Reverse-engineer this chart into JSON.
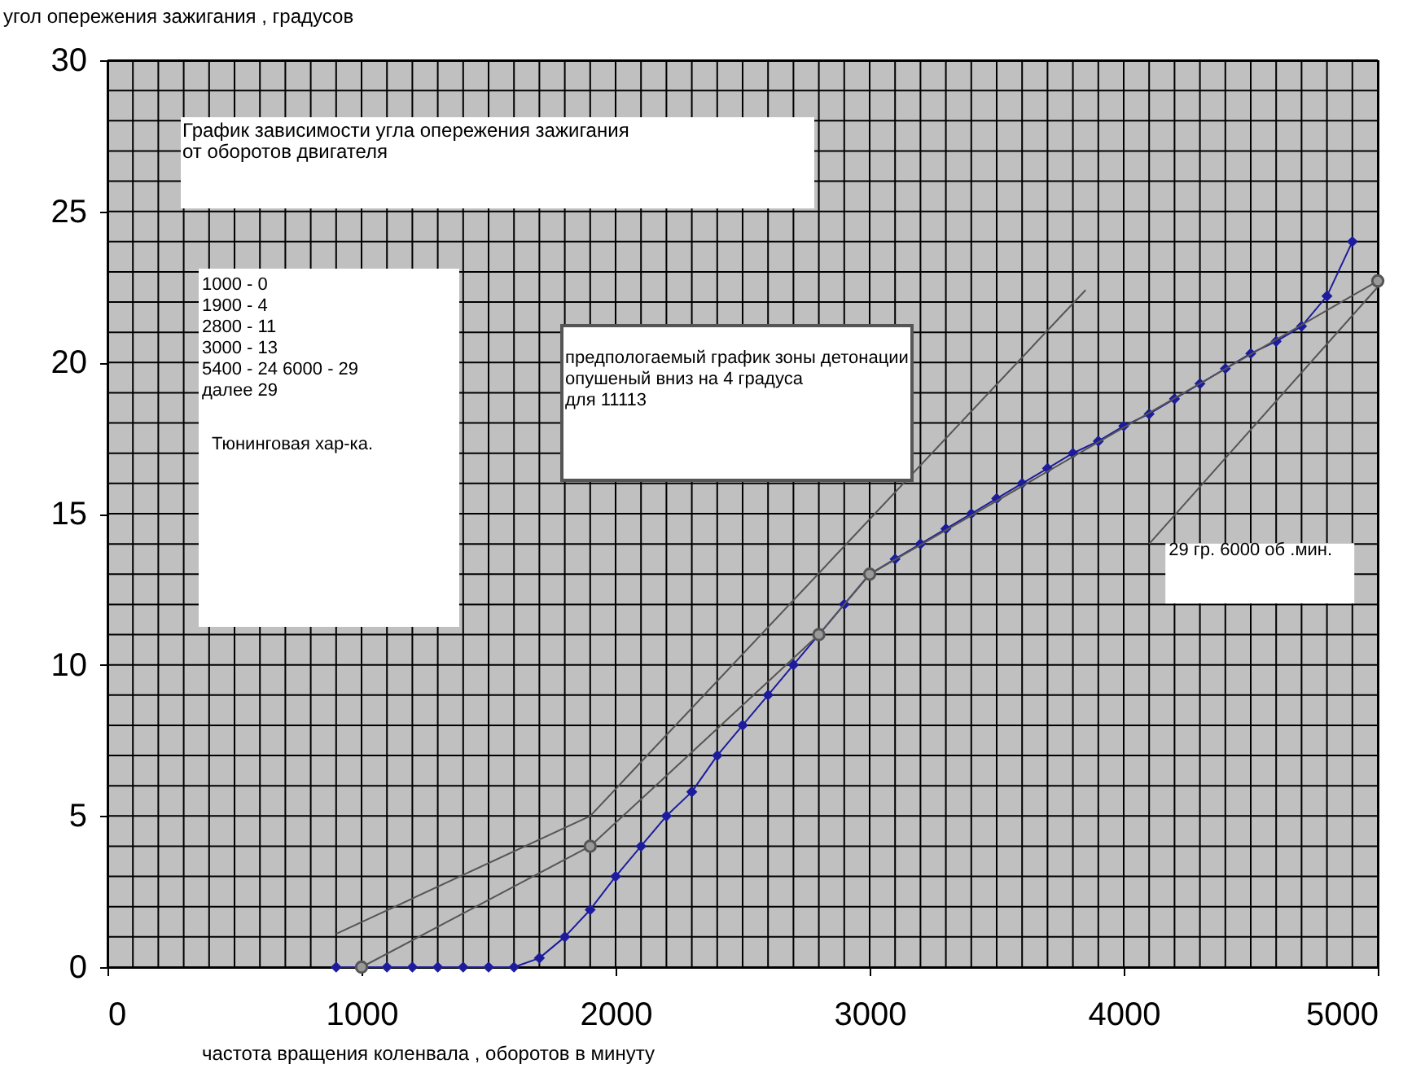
{
  "chart_data": {
    "type": "line",
    "title": "График зависимости угла опережения зажигания\n от оборотов двигателя",
    "xlabel": "частота вращения коленвала , оборотов в минуту",
    "ylabel": "угол опережения зажигания , градусов",
    "xlim": [
      0,
      5000
    ],
    "xticks": [
      0,
      1000,
      2000,
      3000,
      4000,
      5000
    ],
    "ylim": [
      0,
      30
    ],
    "yticks": [
      0,
      5,
      10,
      15,
      20,
      25,
      30
    ],
    "grid": true,
    "series": [
      {
        "color": "#1c1c9c",
        "marker": "diamond",
        "x": [
          900,
          1000,
          1100,
          1200,
          1300,
          1400,
          1500,
          1600,
          1700,
          1800,
          1900,
          2000,
          2100,
          2200,
          2300,
          2400,
          2500,
          2600,
          2700,
          2800,
          2900,
          3000,
          3100,
          3200,
          3300,
          3400,
          3500,
          3600,
          3700,
          3800,
          3900,
          4000,
          4100,
          4200,
          4300,
          4400,
          4500,
          4600,
          4700,
          4800,
          4900
        ],
        "values": [
          0,
          0,
          0,
          0,
          0,
          0,
          0,
          0,
          0.3,
          1,
          1.9,
          3,
          4,
          5,
          5.8,
          7,
          8,
          9,
          10,
          11,
          12,
          13,
          13.5,
          14,
          14.5,
          15,
          15.5,
          16,
          16.5,
          17,
          17.4,
          17.9,
          18.3,
          18.8,
          19.3,
          19.8,
          20.3,
          20.7,
          21.2,
          22.2,
          24
        ]
      },
      {
        "color": "#555555",
        "marker": "circle",
        "x": [
          1000,
          1900,
          2800,
          3000,
          5000
        ],
        "values": [
          0,
          4,
          11,
          13,
          22.7
        ]
      },
      {
        "color": "#555555",
        "marker": "none",
        "x": [
          900,
          1900,
          3850
        ],
        "values": [
          1.1,
          5,
          22.4
        ]
      },
      {
        "color": "#555555",
        "marker": "none",
        "x": [
          4100,
          5000
        ],
        "values": [
          14,
          22.5
        ]
      }
    ],
    "annotations": [
      "1000 - 0\n1900 - 4\n2800 - 11\n3000 - 13\n5400 - 24    6000 - 29\nдалее 29",
      "Тюнинговая хар-ка.",
      "предпологаемый график зоны детонации\nопушеный вниз на 4 градуса\nдля  11113",
      {
        "text": "29 гр.  6000 об .мин.",
        "x": 4100,
        "y": 14
      }
    ]
  }
}
